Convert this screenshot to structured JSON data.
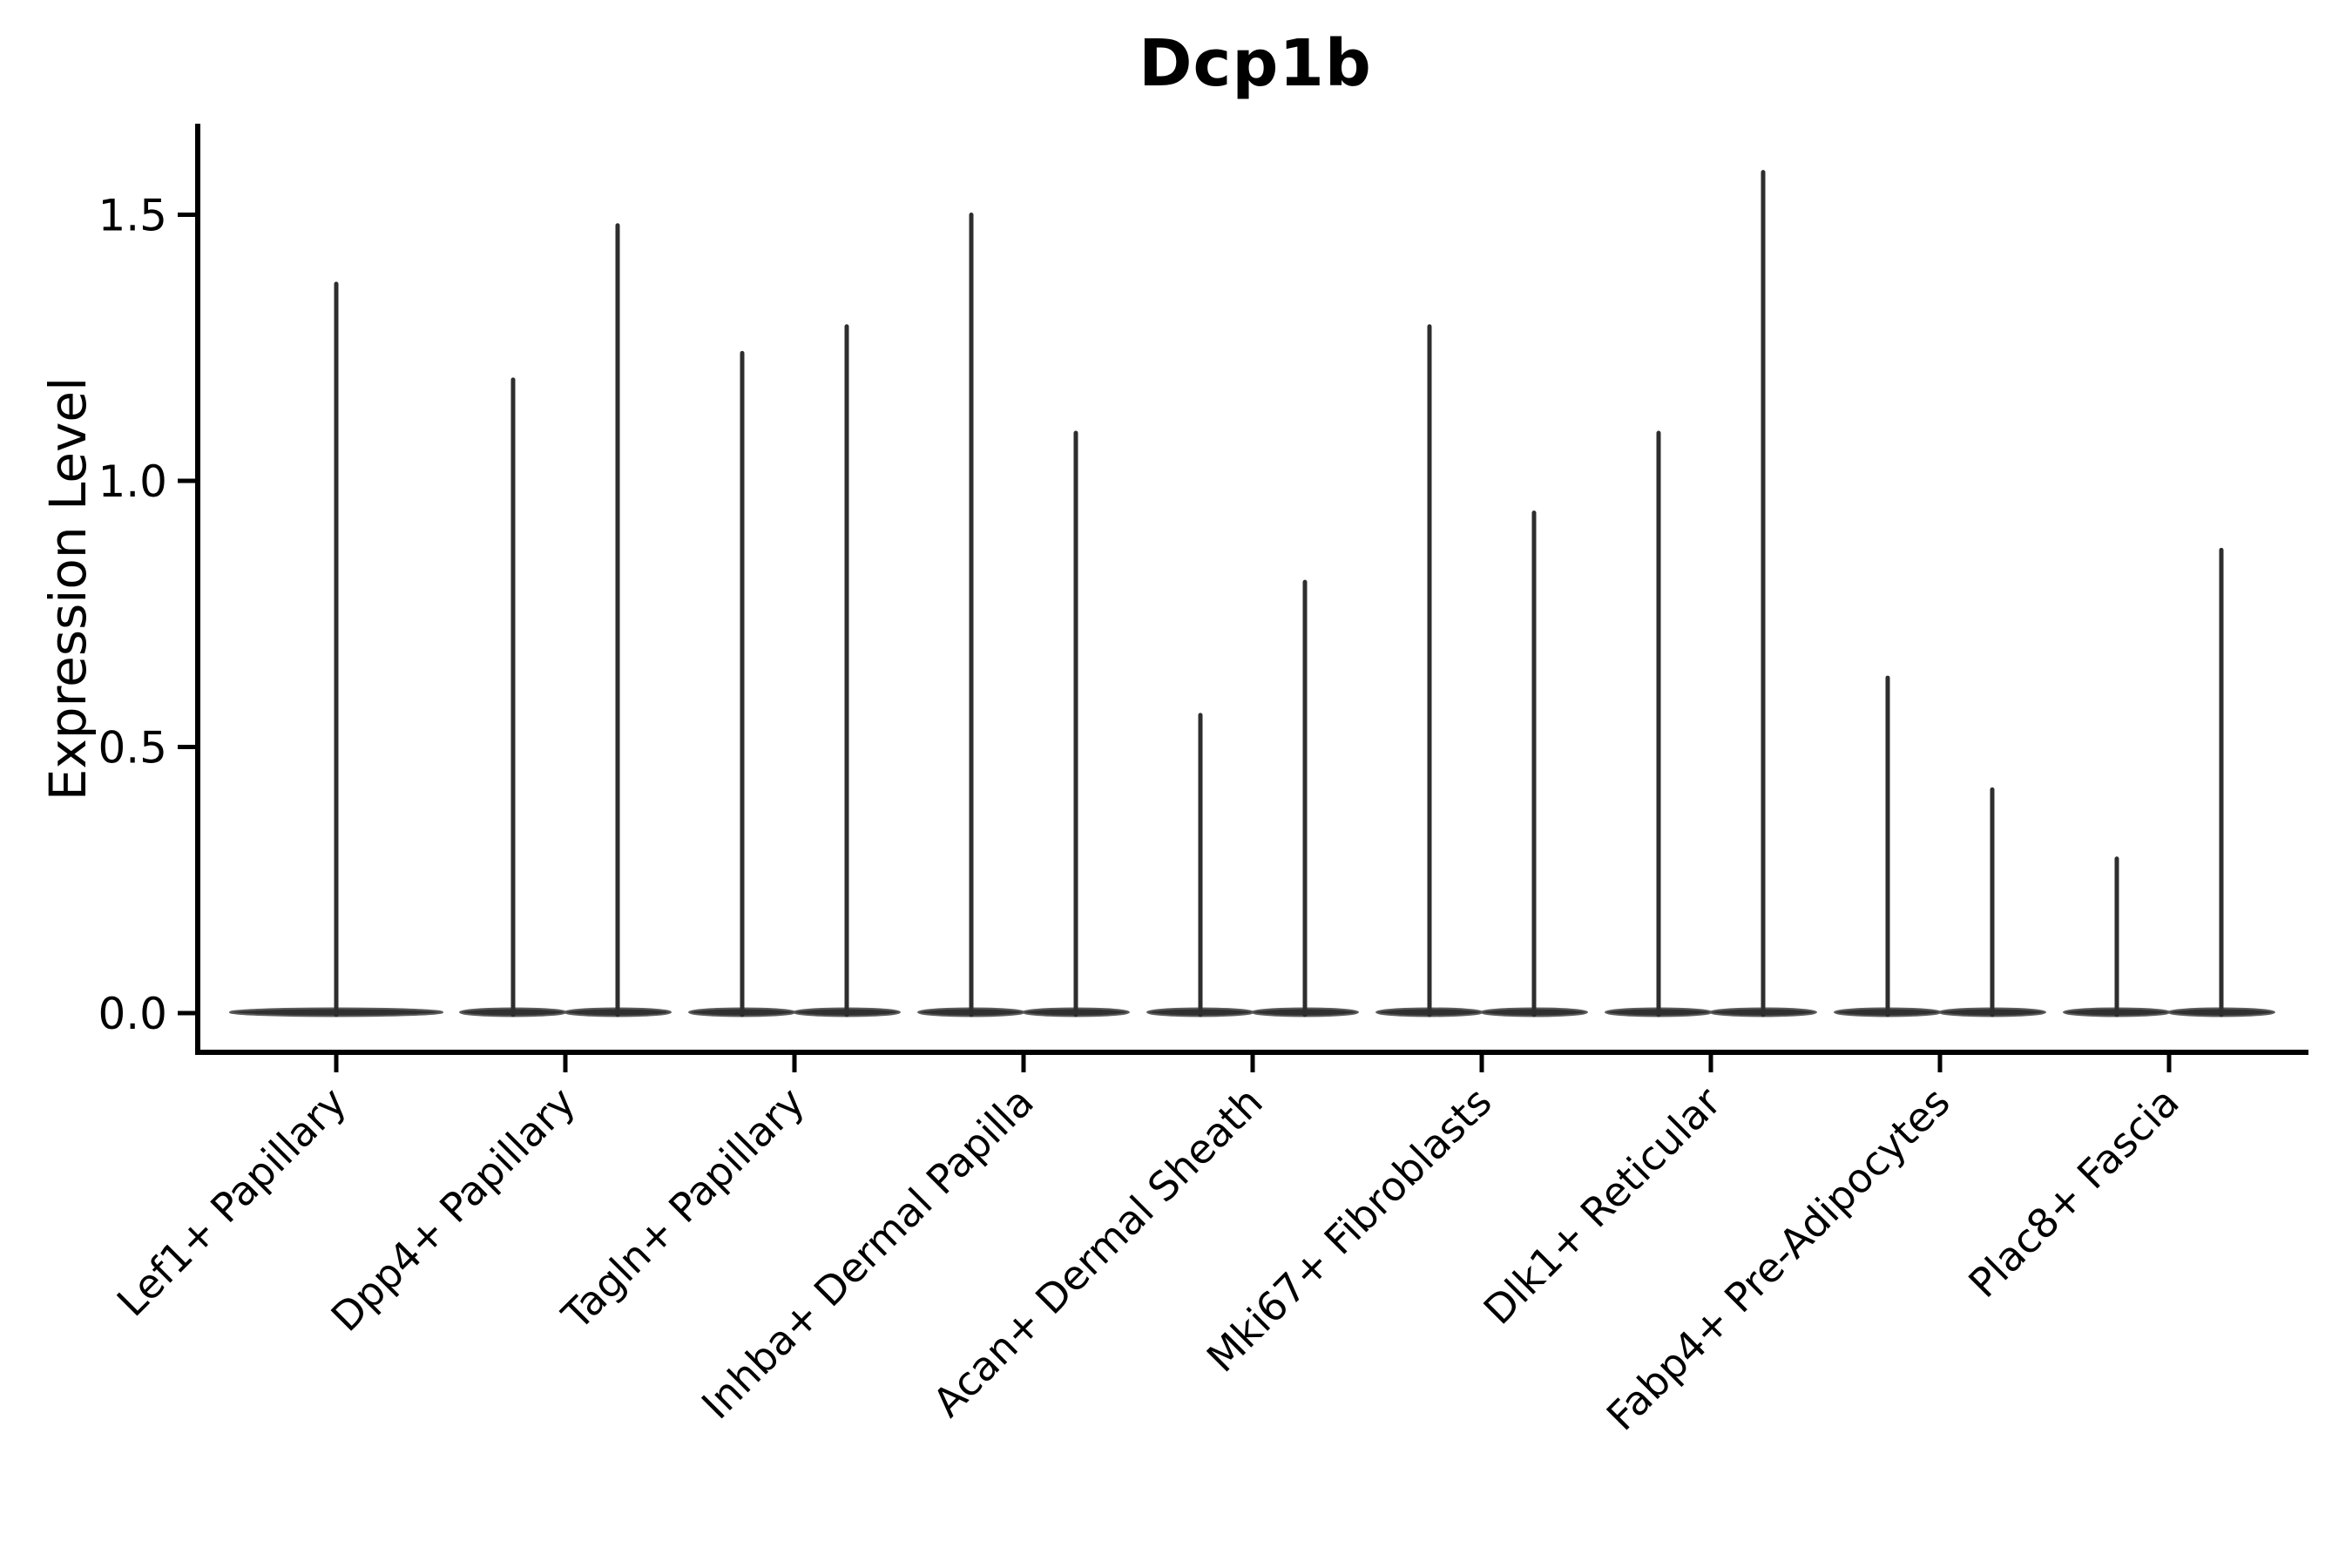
{
  "figure": {
    "title": "Dcp1b",
    "y_axis_label": "Expression Level"
  },
  "chart_data": {
    "type": "violin",
    "title": "Dcp1b",
    "xlabel": "",
    "ylabel": "Expression Level",
    "ylim": [
      -0.07,
      1.67
    ],
    "yticks": [
      0.0,
      0.5,
      1.0,
      1.5
    ],
    "ytick_labels": [
      "0.0",
      "0.5",
      "1.0",
      "1.5"
    ],
    "grid": false,
    "legend": "none",
    "baseline_value": 0.0,
    "categories": [
      "Lef1+ Papillary",
      "Dpp4+ Papillary",
      "Tagln+ Papillary",
      "Inhba+ Dermal Papilla",
      "Acan+ Dermal Sheath",
      "Mki67+ Fibroblasts",
      "Dlk1+ Reticular",
      "Fabp4+ Pre-Adipocytes",
      "Plac8+ Fascia"
    ],
    "series": [
      {
        "category": "Lef1+ Papillary",
        "violins": [
          {
            "align": "center",
            "peak_expression": 1.37
          }
        ]
      },
      {
        "category": "Dpp4+ Papillary",
        "violins": [
          {
            "align": "left",
            "peak_expression": 1.19
          },
          {
            "align": "right",
            "peak_expression": 1.48
          }
        ]
      },
      {
        "category": "Tagln+ Papillary",
        "violins": [
          {
            "align": "left",
            "peak_expression": 1.24
          },
          {
            "align": "right",
            "peak_expression": 1.29
          }
        ]
      },
      {
        "category": "Inhba+ Dermal Papilla",
        "violins": [
          {
            "align": "left",
            "peak_expression": 1.5
          },
          {
            "align": "right",
            "peak_expression": 1.09
          }
        ]
      },
      {
        "category": "Acan+ Dermal Sheath",
        "violins": [
          {
            "align": "left",
            "peak_expression": 0.56
          },
          {
            "align": "right",
            "peak_expression": 0.81
          }
        ]
      },
      {
        "category": "Mki67+ Fibroblasts",
        "violins": [
          {
            "align": "left",
            "peak_expression": 1.29
          },
          {
            "align": "right",
            "peak_expression": 0.94
          }
        ]
      },
      {
        "category": "Dlk1+ Reticular",
        "violins": [
          {
            "align": "left",
            "peak_expression": 1.09
          },
          {
            "align": "right",
            "peak_expression": 1.58
          }
        ]
      },
      {
        "category": "Fabp4+ Pre-Adipocytes",
        "violins": [
          {
            "align": "left",
            "peak_expression": 0.63
          },
          {
            "align": "right",
            "peak_expression": 0.42
          }
        ]
      },
      {
        "category": "Plac8+ Fascia",
        "violins": [
          {
            "align": "left",
            "peak_expression": 0.29
          },
          {
            "align": "right",
            "peak_expression": 0.87
          }
        ]
      }
    ]
  },
  "colors": {
    "background": "#ffffff",
    "ink": "#000000",
    "violin_fill": "#303030",
    "violin_edge": "#5a5a5a",
    "spike": "#2e2e2e"
  }
}
